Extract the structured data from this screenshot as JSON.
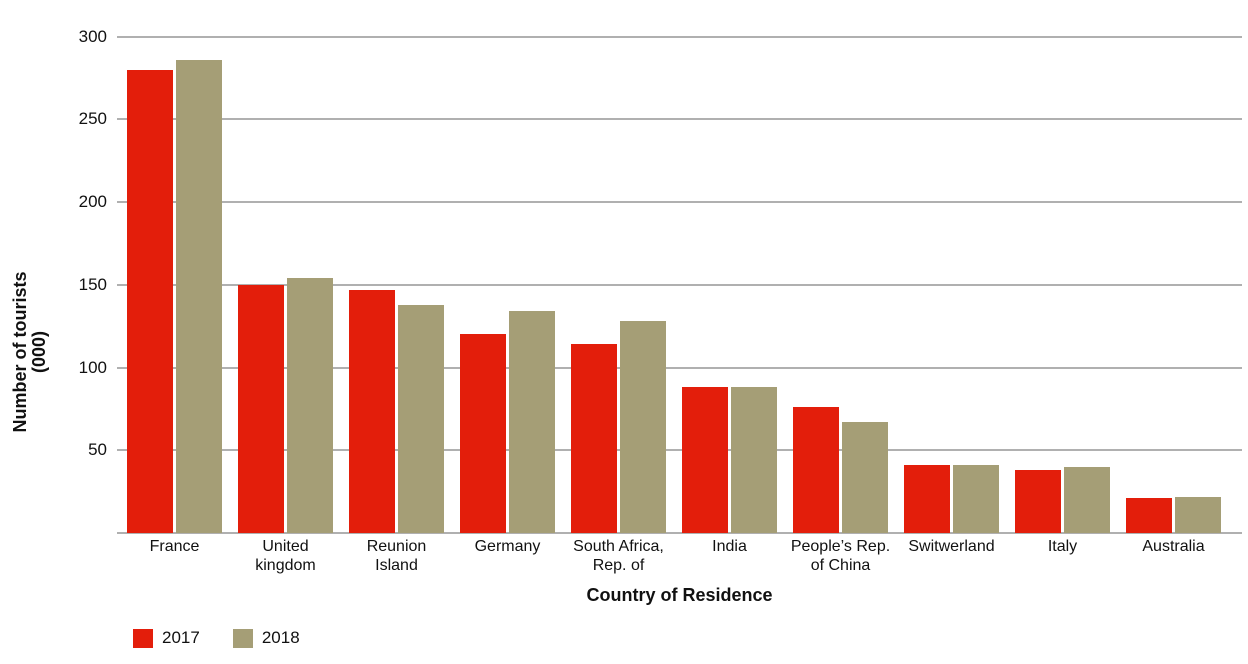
{
  "chart_data": {
    "type": "bar",
    "title": "",
    "xlabel": "Country of Residence",
    "ylabel": "Number of tourists (000)",
    "ylabel_lines": [
      "Number of tourists",
      "(000)"
    ],
    "categories": [
      "France",
      "United kingdom",
      "Reunion Island",
      "Germany",
      "South Africa, Rep. of",
      "India",
      "People’s Rep. of China",
      "Switwerland",
      "Italy",
      "Australia"
    ],
    "category_label_lines": [
      [
        "France"
      ],
      [
        "United",
        "kingdom"
      ],
      [
        "Reunion",
        "Island"
      ],
      [
        "Germany"
      ],
      [
        "South Africa,",
        "Rep. of"
      ],
      [
        "India"
      ],
      [
        "People’s Rep.",
        "of China"
      ],
      [
        "Switwerland"
      ],
      [
        "Italy"
      ],
      [
        "Australia"
      ]
    ],
    "series": [
      {
        "name": "2017",
        "color": "#e31e0b",
        "values": [
          280,
          150,
          147,
          120,
          114,
          88,
          76,
          41,
          38,
          21
        ]
      },
      {
        "name": "2018",
        "color": "#a59e76",
        "values": [
          286,
          154,
          138,
          134,
          128,
          88,
          67,
          41,
          40,
          22
        ]
      }
    ],
    "ylim": [
      0,
      300
    ],
    "yticks": [
      300,
      250,
      200,
      150,
      100,
      50
    ],
    "grid": "horizontal",
    "gridline_color": "#b0b0b0",
    "legend_position": "bottom-left"
  },
  "legend": {
    "items": [
      {
        "label": "2017",
        "color": "#e31e0b"
      },
      {
        "label": "2018",
        "color": "#a59e76"
      }
    ]
  }
}
